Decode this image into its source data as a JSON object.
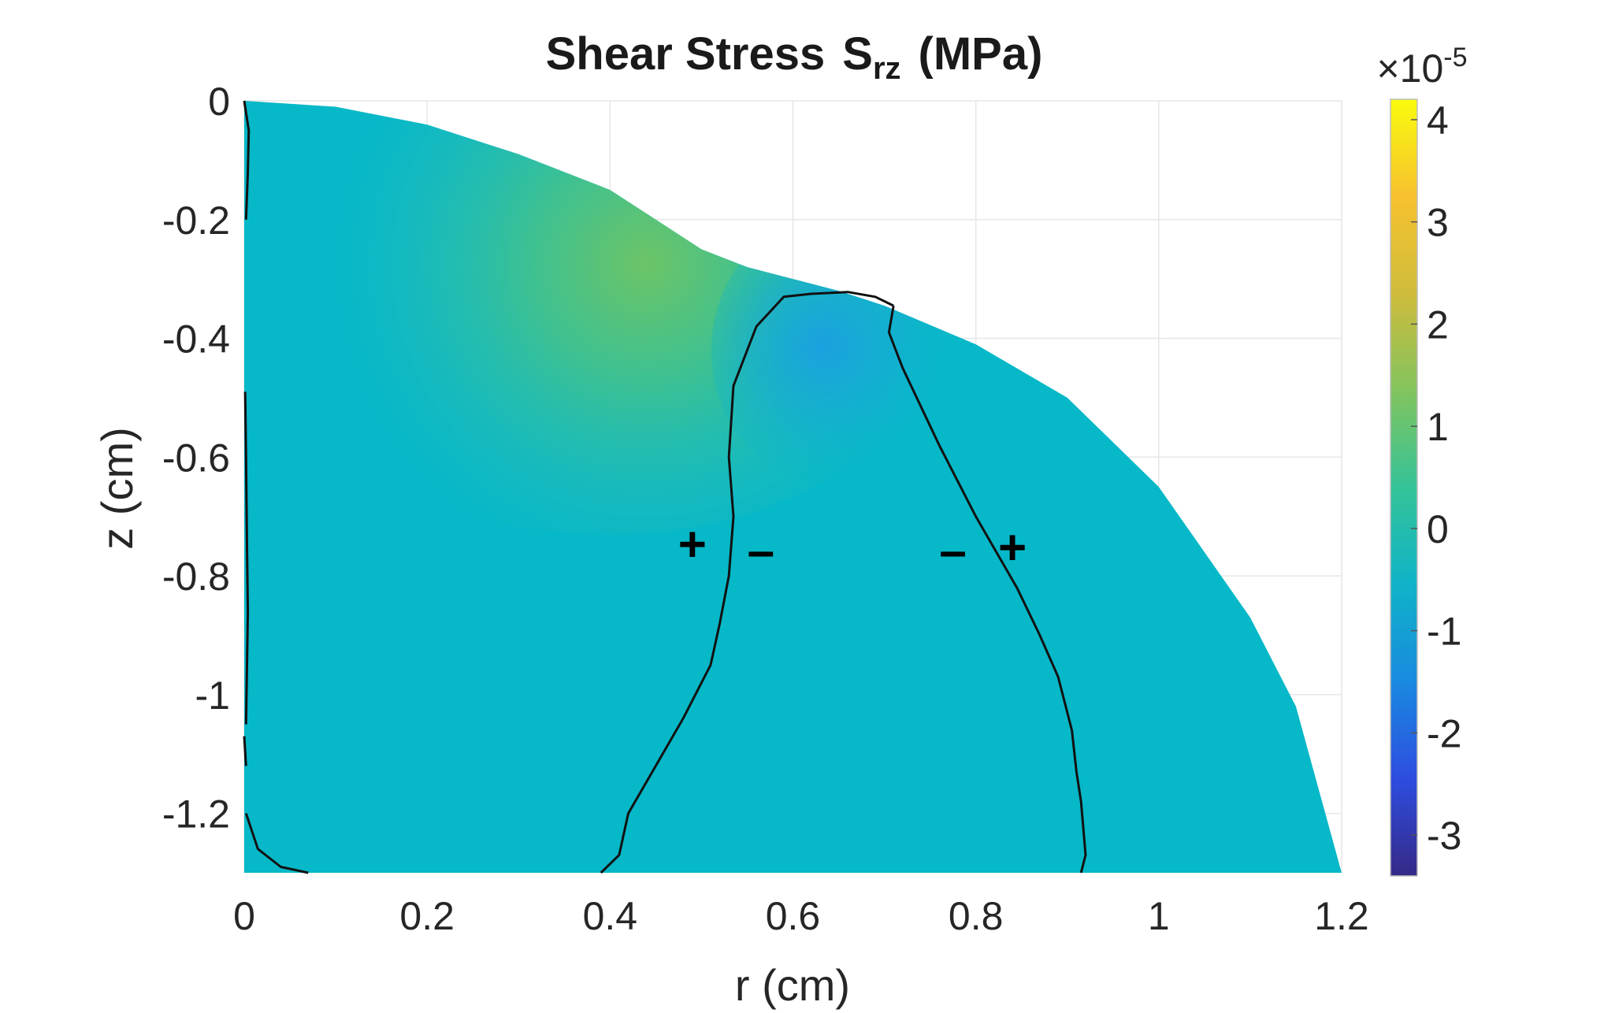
{
  "chart_data": {
    "type": "heatmap",
    "title": "Shear Stress",
    "title_symbol": "S",
    "title_subscript": "rz",
    "title_units": "(MPa)",
    "xlabel": "r (cm)",
    "ylabel": "z (cm)",
    "xlim": [
      0,
      1.2
    ],
    "ylim": [
      -1.3,
      0
    ],
    "xticks": [
      0,
      0.2,
      0.4,
      0.6,
      0.8,
      1,
      1.2
    ],
    "xtick_labels": [
      "0",
      "0.2",
      "0.4",
      "0.6",
      "0.8",
      "1",
      "1.2"
    ],
    "yticks": [
      0,
      -0.2,
      -0.4,
      -0.6,
      -0.8,
      -1,
      -1.2
    ],
    "ytick_labels": [
      "0",
      "-0.2",
      "-0.4",
      "-0.6",
      "-0.8",
      "-1",
      "-1.2"
    ],
    "grid": true,
    "colorbar": {
      "exponent_label": "×10",
      "exponent_power": "-5",
      "range": [
        -3.4,
        4.2
      ],
      "ticks": [
        4,
        3,
        2,
        1,
        0,
        -1,
        -2,
        -3
      ],
      "tick_labels": [
        "4",
        "3",
        "2",
        "1",
        "0",
        "-1",
        "-2",
        "-3"
      ],
      "colormap": "parula",
      "colors": [
        "#352a87",
        "#2d4de0",
        "#1a8ae0",
        "#0fb3c8",
        "#35c398",
        "#82c45e",
        "#cfbc3c",
        "#f7c22f",
        "#f9fb0e"
      ]
    },
    "domain_boundary": [
      [
        0,
        0
      ],
      [
        0.1,
        -0.01
      ],
      [
        0.2,
        -0.04
      ],
      [
        0.3,
        -0.09
      ],
      [
        0.4,
        -0.15
      ],
      [
        0.45,
        -0.2
      ],
      [
        0.5,
        -0.25
      ],
      [
        0.55,
        -0.28
      ],
      [
        0.6,
        -0.3
      ],
      [
        0.65,
        -0.32
      ],
      [
        0.7,
        -0.345
      ],
      [
        0.8,
        -0.41
      ],
      [
        0.9,
        -0.5
      ],
      [
        1.0,
        -0.65
      ],
      [
        1.1,
        -0.87
      ],
      [
        1.15,
        -1.02
      ],
      [
        1.2,
        -1.3
      ]
    ],
    "features": [
      {
        "name": "positive peak",
        "r": 0.45,
        "z": -0.28,
        "value": 1.5
      },
      {
        "name": "negative dip",
        "r": 0.64,
        "z": -0.42,
        "value": -0.6
      }
    ],
    "zero_contours": [
      [
        [
          0,
          0
        ],
        [
          0.005,
          -0.05
        ],
        [
          0.004,
          -0.12
        ],
        [
          0.002,
          -0.2
        ]
      ],
      [
        [
          0.001,
          -0.49
        ],
        [
          0.002,
          -0.6
        ],
        [
          0.003,
          -0.75
        ],
        [
          0.004,
          -0.86
        ],
        [
          0.002,
          -1.05
        ]
      ],
      [
        [
          0.0,
          -1.07
        ],
        [
          0.002,
          -1.12
        ]
      ],
      [
        [
          0.002,
          -1.2
        ],
        [
          0.015,
          -1.26
        ],
        [
          0.04,
          -1.29
        ],
        [
          0.07,
          -1.3
        ]
      ],
      [
        [
          0.39,
          -1.3
        ],
        [
          0.41,
          -1.27
        ],
        [
          0.42,
          -1.2
        ],
        [
          0.45,
          -1.12
        ],
        [
          0.48,
          -1.04
        ],
        [
          0.51,
          -0.95
        ],
        [
          0.52,
          -0.88
        ],
        [
          0.53,
          -0.8
        ],
        [
          0.535,
          -0.7
        ],
        [
          0.53,
          -0.6
        ],
        [
          0.535,
          -0.48
        ],
        [
          0.56,
          -0.38
        ],
        [
          0.59,
          -0.33
        ],
        [
          0.62,
          -0.325
        ],
        [
          0.66,
          -0.322
        ],
        [
          0.69,
          -0.33
        ],
        [
          0.71,
          -0.345
        ]
      ],
      [
        [
          0.71,
          -0.345
        ],
        [
          0.705,
          -0.39
        ],
        [
          0.72,
          -0.45
        ],
        [
          0.76,
          -0.58
        ],
        [
          0.8,
          -0.7
        ],
        [
          0.845,
          -0.82
        ],
        [
          0.87,
          -0.9
        ],
        [
          0.89,
          -0.97
        ],
        [
          0.905,
          -1.06
        ],
        [
          0.91,
          -1.13
        ],
        [
          0.915,
          -1.18
        ],
        [
          0.92,
          -1.27
        ],
        [
          0.915,
          -1.3
        ]
      ]
    ],
    "annotations": [
      {
        "text": "+",
        "r": 0.49,
        "z": -0.775
      },
      {
        "text": "–",
        "r": 0.565,
        "z": -0.785
      },
      {
        "text": "–",
        "r": 0.775,
        "z": -0.785
      },
      {
        "text": "+",
        "r": 0.84,
        "z": -0.78
      }
    ]
  }
}
